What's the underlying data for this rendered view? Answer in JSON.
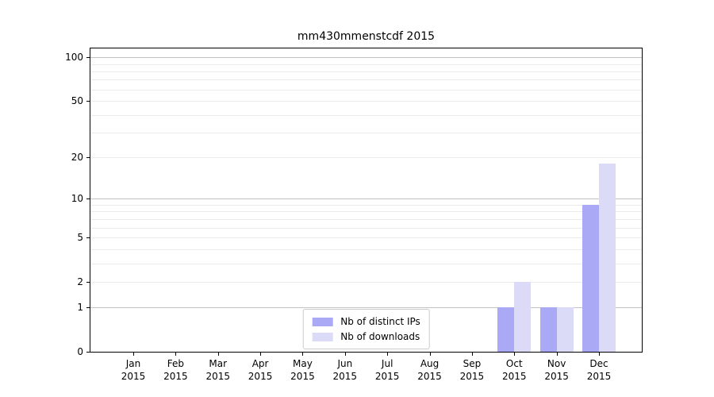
{
  "chart_data": {
    "type": "bar",
    "title": "mm430mmenstcdf 2015",
    "categories": [
      "Jan",
      "Feb",
      "Mar",
      "Apr",
      "May",
      "Jun",
      "Jul",
      "Aug",
      "Sep",
      "Oct",
      "Nov",
      "Dec"
    ],
    "category_year": "2015",
    "series": [
      {
        "name": "Nb of distinct IPs",
        "color": "#a9a9f5",
        "values": [
          0,
          0,
          0,
          0,
          0,
          0,
          0,
          0,
          0,
          1,
          1,
          9
        ]
      },
      {
        "name": "Nb of downloads",
        "color": "#dbdbf8",
        "values": [
          0,
          0,
          0,
          0,
          0,
          0,
          0,
          0,
          0,
          2,
          1,
          18
        ]
      }
    ],
    "y_scale": "log1p",
    "ylim": [
      0,
      115
    ],
    "y_tick_labels": [
      100,
      50,
      20,
      10,
      5,
      2,
      1,
      0
    ],
    "grid_major": [
      1,
      10,
      100
    ],
    "grid_minor": [
      2,
      3,
      4,
      5,
      6,
      7,
      8,
      9,
      20,
      30,
      40,
      50,
      60,
      70,
      80,
      90
    ],
    "grid_major_color": "#c2c2c2",
    "grid_minor_color": "#ebebeb",
    "legend_position": "lower center",
    "axes_edge_color": "#000000"
  }
}
